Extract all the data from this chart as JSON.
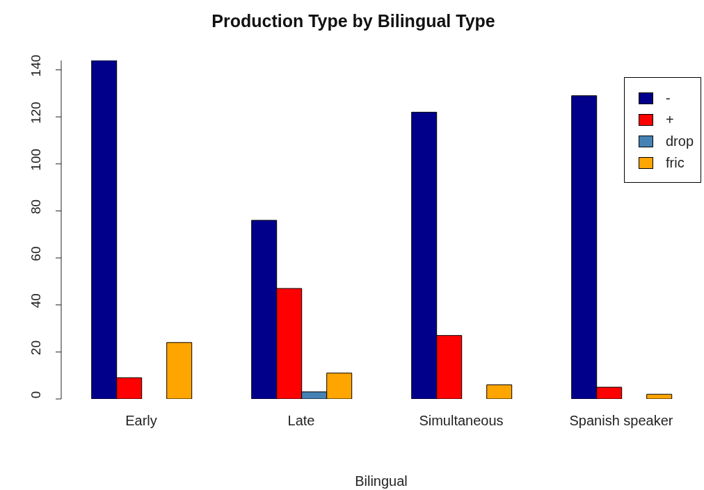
{
  "chart_data": {
    "type": "bar",
    "title": "Production Type by Bilingual Type",
    "xlabel": "Bilingual",
    "categories": [
      "Early",
      "Late",
      "Simultaneous",
      "Spanish speaker"
    ],
    "series": [
      {
        "name": "-",
        "color": "#00008b",
        "values": [
          144,
          76,
          122,
          129
        ]
      },
      {
        "name": "+",
        "color": "#ff0000",
        "values": [
          9,
          47,
          27,
          5
        ]
      },
      {
        "name": "drop",
        "color": "#4682b4",
        "values": [
          0,
          3,
          0,
          0
        ]
      },
      {
        "name": "fric",
        "color": "#ffa500",
        "values": [
          24,
          11,
          6,
          2
        ]
      }
    ],
    "ylim": [
      0,
      144
    ],
    "yticks": [
      0,
      20,
      40,
      60,
      80,
      100,
      120,
      140
    ],
    "grid": false,
    "legend": "top right"
  }
}
